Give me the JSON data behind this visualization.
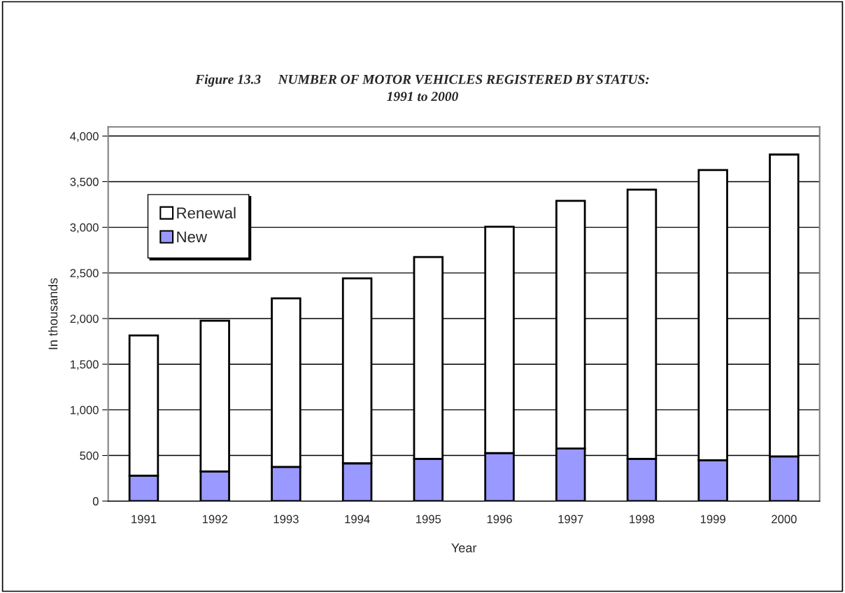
{
  "chart_data": {
    "type": "bar",
    "title": "Figure 13.3     NUMBER OF MOTOR VEHICLES REGISTERED BY STATUS:\n1991 to 2000",
    "xlabel": "Year",
    "ylabel": "In thousands",
    "categories": [
      "1991",
      "1992",
      "1993",
      "1994",
      "1995",
      "1996",
      "1997",
      "1998",
      "1999",
      "2000"
    ],
    "stacked": true,
    "series": [
      {
        "name": "New",
        "color": "#9999ff",
        "values": [
          278,
          324,
          374,
          414,
          463,
          527,
          576,
          463,
          447,
          489
        ]
      },
      {
        "name": "Renewal",
        "color": "#ffffff",
        "values": [
          1537,
          1652,
          1848,
          2026,
          2212,
          2479,
          2714,
          2950,
          3181,
          3308
        ]
      }
    ],
    "ylim": [
      0,
      4100
    ],
    "yticks": [
      {
        "value": 0,
        "label": "0"
      },
      {
        "value": 500,
        "label": "500"
      },
      {
        "value": 1000,
        "label": "1,000"
      },
      {
        "value": 1500,
        "label": "1,500"
      },
      {
        "value": 2000,
        "label": "2,000"
      },
      {
        "value": 2500,
        "label": "2,500"
      },
      {
        "value": 3000,
        "label": "3,000"
      },
      {
        "value": 3500,
        "label": "3,500"
      },
      {
        "value": 4000,
        "label": "4,000"
      }
    ],
    "grid": "y",
    "legend": "top left"
  }
}
